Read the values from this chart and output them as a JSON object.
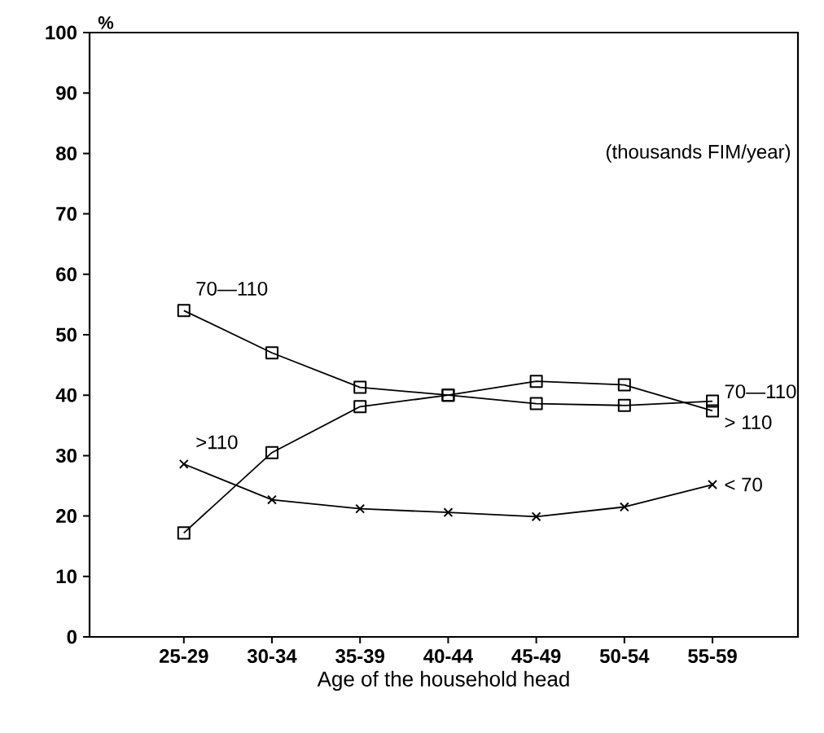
{
  "chart_data": {
    "type": "line",
    "xlabel": "Age of the household head",
    "ylabel": "%",
    "legend_title": "(thousands FIM/year)",
    "categories": [
      "25-29",
      "30-34",
      "35-39",
      "40-44",
      "45-49",
      "50-54",
      "55-59"
    ],
    "series": [
      {
        "name": "70—110",
        "color": "#000000",
        "marker": "square",
        "values": [
          54,
          47,
          41.3,
          40,
          38.6,
          38.3,
          39
        ]
      },
      {
        "name": "> 110",
        "color": "#000000",
        "marker": "square",
        "values": [
          17.2,
          30.5,
          38.1,
          40,
          42.3,
          41.7,
          37.4
        ]
      },
      {
        "name": "< 70",
        "color": "#000000",
        "marker": "cross",
        "values": [
          28.6,
          22.7,
          21.2,
          20.6,
          19.9,
          21.5,
          25.2
        ]
      }
    ],
    "annotations": [
      {
        "text": "70—110",
        "x": "25-29",
        "y": 54
      },
      {
        "text": ">110",
        "x": "25-29",
        "y": 28.6
      }
    ],
    "ylim": [
      0,
      100
    ],
    "yticks": [
      0,
      10,
      20,
      30,
      40,
      50,
      60,
      70,
      80,
      90,
      100
    ],
    "grid": false,
    "line_style": "solid"
  }
}
